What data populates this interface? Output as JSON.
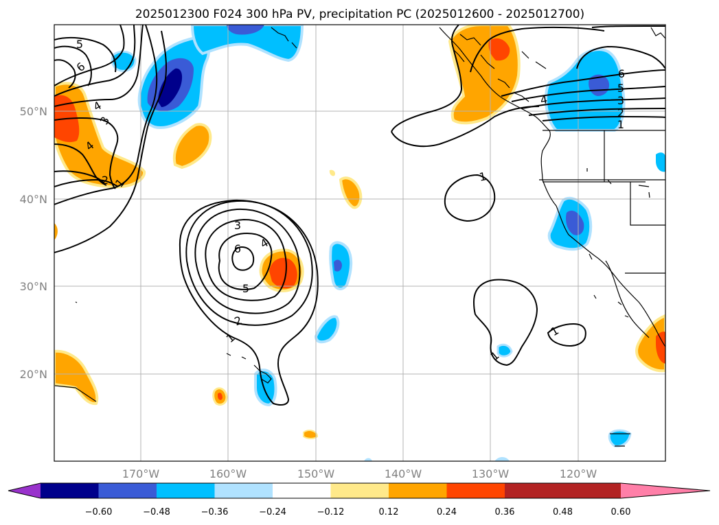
{
  "title": "2025012300 F024 300 hPa PV, precipitation PC (2025012600 - 2025012700)",
  "lat_labels": [
    "50°N",
    "40°N",
    "30°N",
    "20°N"
  ],
  "lon_labels": [
    "170°W",
    "160°W",
    "150°W",
    "140°W",
    "130°W",
    "120°W"
  ],
  "colorbar": {
    "tick_labels": [
      "−0.60",
      "−0.48",
      "−0.36",
      "−0.24",
      "−0.12",
      "0.12",
      "0.24",
      "0.36",
      "0.48",
      "0.60"
    ],
    "colors": [
      "#9932cc",
      "#00008b",
      "#3a5bd6",
      "#00bfff",
      "#b0e2ff",
      "#ffffff",
      "#ffe98a",
      "#ffa500",
      "#ff4500",
      "#b22222",
      "#ff7fa8"
    ]
  },
  "contour_labels": [
    {
      "id": "c5-nw",
      "text": "5"
    },
    {
      "id": "c6-nw",
      "text": "6"
    },
    {
      "id": "c4-nw",
      "text": "4"
    },
    {
      "id": "c3-nw",
      "text": "3"
    },
    {
      "id": "c4-nw2",
      "text": "4"
    },
    {
      "id": "c2-nw",
      "text": "2"
    },
    {
      "id": "c1-nw",
      "text": "1"
    },
    {
      "id": "c3-center",
      "text": "3"
    },
    {
      "id": "c6-center",
      "text": "6"
    },
    {
      "id": "c4-center",
      "text": "4"
    },
    {
      "id": "c5-center",
      "text": "5"
    },
    {
      "id": "c2-center",
      "text": "2"
    },
    {
      "id": "c1-center",
      "text": "1"
    },
    {
      "id": "c1-east",
      "text": "1"
    },
    {
      "id": "c1-se",
      "text": "1"
    },
    {
      "id": "c1-se2",
      "text": "1"
    },
    {
      "id": "c6-ne",
      "text": "6"
    },
    {
      "id": "c5-ne",
      "text": "5"
    },
    {
      "id": "c4-ne",
      "text": "4"
    },
    {
      "id": "c3-ne",
      "text": "3"
    },
    {
      "id": "c2-ne",
      "text": "2"
    },
    {
      "id": "c1-ne",
      "text": "1"
    }
  ]
}
